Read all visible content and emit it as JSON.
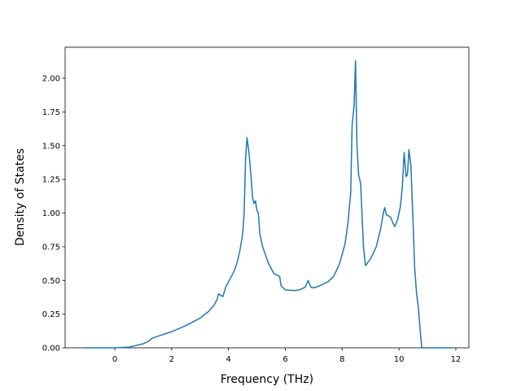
{
  "chart_data": {
    "type": "line",
    "x_label": "Frequency (THz)",
    "y_label": "Density of States",
    "x": [
      -1.1,
      0,
      0.5,
      1.0,
      1.2,
      1.3,
      1.5,
      2,
      2.5,
      3,
      3.3,
      3.5,
      3.6,
      3.65,
      3.8,
      3.9,
      4.1,
      4.2,
      4.3,
      4.4,
      4.5,
      4.55,
      4.6,
      4.65,
      4.72,
      4.8,
      4.85,
      4.9,
      4.95,
      5.0,
      5.05,
      5.1,
      5.2,
      5.4,
      5.6,
      5.8,
      5.85,
      6.0,
      6.3,
      6.5,
      6.7,
      6.8,
      6.9,
      7.0,
      7.2,
      7.5,
      7.7,
      7.9,
      8.1,
      8.2,
      8.3,
      8.35,
      8.42,
      8.47,
      8.52,
      8.58,
      8.65,
      8.75,
      8.82,
      9.0,
      9.2,
      9.35,
      9.45,
      9.5,
      9.55,
      9.7,
      9.8,
      9.85,
      9.95,
      10.05,
      10.12,
      10.18,
      10.25,
      10.3,
      10.35,
      10.42,
      10.5,
      10.55,
      10.62,
      10.68,
      10.75,
      10.8,
      11.9
    ],
    "series": [
      {
        "color": "#1f77b4",
        "values": [
          0,
          0,
          0.005,
          0.03,
          0.05,
          0.07,
          0.085,
          0.12,
          0.165,
          0.22,
          0.27,
          0.32,
          0.36,
          0.4,
          0.38,
          0.45,
          0.53,
          0.57,
          0.63,
          0.72,
          0.85,
          1.0,
          1.4,
          1.56,
          1.45,
          1.25,
          1.11,
          1.07,
          1.09,
          1.02,
          1.0,
          0.85,
          0.75,
          0.63,
          0.55,
          0.53,
          0.46,
          0.43,
          0.425,
          0.43,
          0.45,
          0.5,
          0.45,
          0.445,
          0.46,
          0.49,
          0.53,
          0.62,
          0.77,
          0.92,
          1.15,
          1.65,
          1.8,
          2.13,
          1.5,
          1.28,
          1.22,
          0.75,
          0.61,
          0.66,
          0.75,
          0.88,
          1.0,
          1.04,
          0.99,
          0.97,
          0.92,
          0.9,
          0.95,
          1.05,
          1.2,
          1.45,
          1.27,
          1.29,
          1.47,
          1.35,
          0.9,
          0.6,
          0.4,
          0.3,
          0.12,
          0,
          0
        ]
      }
    ],
    "xlim": [
      -1.75,
      12.46
    ],
    "xticks": [
      0,
      2,
      4,
      6,
      8,
      10,
      12
    ],
    "ylim": [
      0,
      2.23
    ],
    "yticks": [
      {
        "value": 0,
        "label": "0.00"
      },
      {
        "value": 0.25,
        "label": "0.25"
      },
      {
        "value": 0.5,
        "label": "0.50"
      },
      {
        "value": 0.75,
        "label": "0.75"
      },
      {
        "value": 1.0,
        "label": "1.00"
      },
      {
        "value": 1.25,
        "label": "1.25"
      },
      {
        "value": 1.5,
        "label": "1.50"
      },
      {
        "value": 1.75,
        "label": "1.75"
      },
      {
        "value": 2.0,
        "label": "2.00"
      }
    ]
  }
}
